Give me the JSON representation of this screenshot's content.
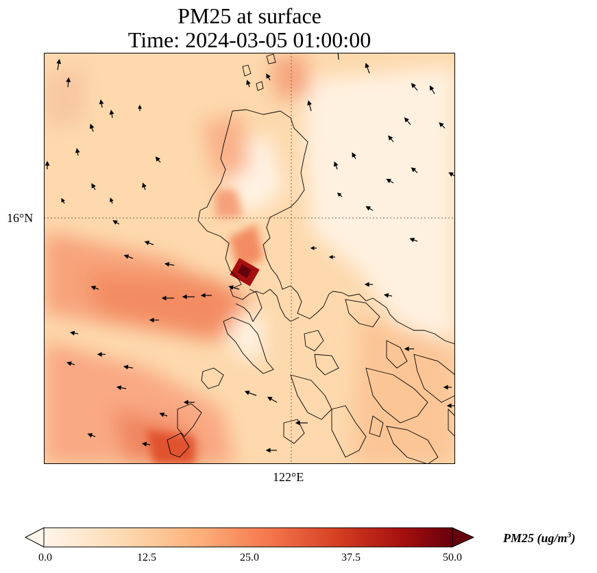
{
  "title": "PM25 at surface",
  "subtitle": "Time: 2024-03-05 01:00:00",
  "lat_label": "16°N",
  "lon_label": "122°E",
  "colorbar": {
    "variable": "PM25",
    "units_prefix": "PM25 (ug/m",
    "units_exp": "3",
    "units_suffix": ")",
    "ticks": [
      "0.0",
      "12.5",
      "25.0",
      "37.5",
      "50.0"
    ],
    "min": 0,
    "max": 50,
    "colormap": [
      "#fff5eb",
      "#fdd9b0",
      "#fdb07a",
      "#f5774d",
      "#d53e22",
      "#a50f0f",
      "#67000d"
    ]
  },
  "map": {
    "gridline_color": "#8a5a3a",
    "coastline_color": "#000000",
    "arrow_color": "#000000"
  }
}
